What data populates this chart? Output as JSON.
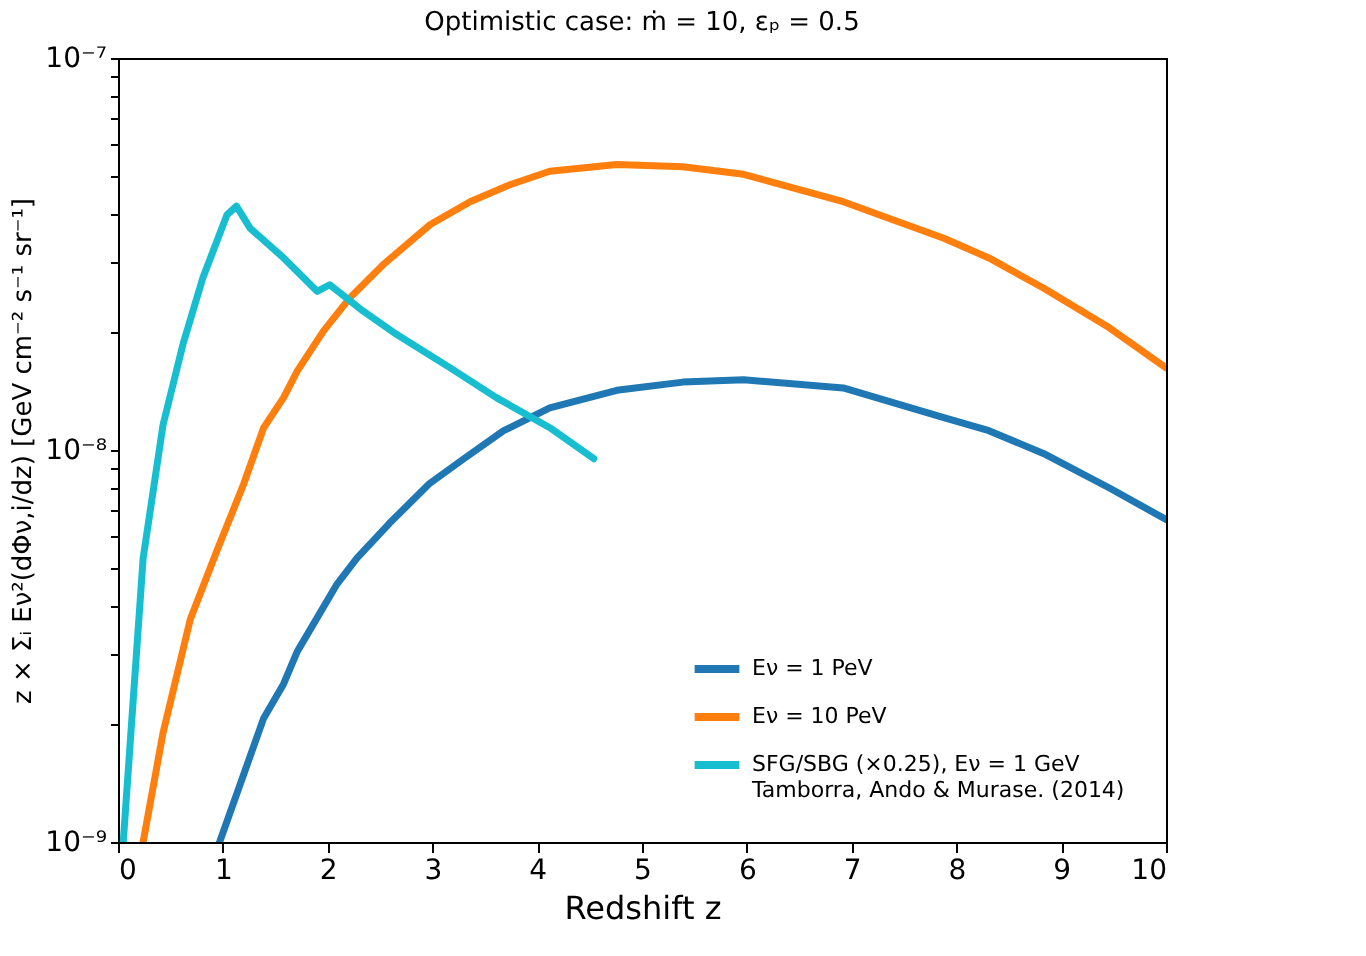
{
  "chart_data": {
    "type": "line",
    "title": "Optimistic case: ṁ = 10, εₚ = 0.5",
    "xlabel": "Redshift z",
    "ylabel": "z × Σᵢ Eν²(dΦν,i/dz) [GeV cm⁻² s⁻¹ sr⁻¹]",
    "log": "y",
    "grid": false,
    "legend": "bottom right",
    "line_style": "solid",
    "marker": "none",
    "xlim": [
      0,
      10
    ],
    "xticks": [
      0,
      1,
      2,
      3,
      4,
      5,
      6,
      7,
      8,
      9,
      10
    ],
    "ylim": [
      1e-09,
      1e-07
    ],
    "yticks": [
      {
        "value": 1e-09,
        "label": "10⁻⁹"
      },
      {
        "value": 2e-09,
        "label": null
      },
      {
        "value": 3e-09,
        "label": null
      },
      {
        "value": 4e-09,
        "label": null
      },
      {
        "value": 5e-09,
        "label": null
      },
      {
        "value": 6e-09,
        "label": null
      },
      {
        "value": 7e-09,
        "label": null
      },
      {
        "value": 8e-09,
        "label": null
      },
      {
        "value": 9e-09,
        "label": null
      },
      {
        "value": 1e-08,
        "label": "10⁻⁸"
      },
      {
        "value": 2e-08,
        "label": null
      },
      {
        "value": 3e-08,
        "label": null
      },
      {
        "value": 4e-08,
        "label": null
      },
      {
        "value": 5e-08,
        "label": null
      },
      {
        "value": 6e-08,
        "label": null
      },
      {
        "value": 7e-08,
        "label": null
      },
      {
        "value": 8e-08,
        "label": null
      },
      {
        "value": 9e-08,
        "label": null
      },
      {
        "value": 1e-07,
        "label": "10⁻⁷"
      }
    ],
    "series": [
      {
        "name": "Eν = 1 PeV",
        "color": "#1f77b4",
        "x": [
          0.97,
          1.39,
          1.58,
          1.71,
          2.09,
          2.28,
          2.59,
          2.97,
          3.3,
          3.68,
          4.12,
          4.76,
          5.39,
          5.97,
          6.92,
          7.88,
          8.31,
          8.83,
          9.46,
          10
        ],
        "values": [
          1e-09,
          2.07e-09,
          2.53e-09,
          3.06e-09,
          4.55e-09,
          5.3e-09,
          6.5e-09,
          8.2e-09,
          9.5e-09,
          1.12e-08,
          1.28e-08,
          1.42e-08,
          1.49e-08,
          1.51e-08,
          1.44e-08,
          1.21e-08,
          1.12e-08,
          9.8e-09,
          8e-09,
          6.65e-09
        ]
      },
      {
        "name": "Eν = 10 PeV",
        "color": "#ff7f0e",
        "x": [
          0.24,
          0.43,
          0.69,
          0.94,
          1.2,
          1.39,
          1.58,
          1.71,
          1.96,
          2.21,
          2.53,
          2.98,
          3.36,
          3.74,
          4.12,
          4.76,
          5.39,
          5.97,
          6.92,
          7.88,
          8.31,
          8.83,
          9.46,
          10
        ],
        "values": [
          1e-09,
          1.9e-09,
          3.7e-09,
          5.5e-09,
          8.2e-09,
          1.14e-08,
          1.36e-08,
          1.59e-08,
          2.01e-08,
          2.44e-08,
          2.97e-08,
          3.76e-08,
          4.3e-08,
          4.75e-08,
          5.14e-08,
          5.35e-08,
          5.28e-08,
          5.05e-08,
          4.3e-08,
          3.47e-08,
          3.09e-08,
          2.59e-08,
          2.05e-08,
          1.62e-08
        ]
      },
      {
        "name": "SFG/SBG (×0.25), Eν = 1 GeV\n Tamborra, Ando & Murase. (2014)",
        "color": "#17becf",
        "x": [
          0.05,
          0.24,
          0.43,
          0.62,
          0.81,
          1.04,
          1.13,
          1.26,
          1.58,
          1.9,
          2.02,
          2.34,
          2.66,
          3.17,
          3.61,
          4.12,
          4.54
        ],
        "values": [
          1e-09,
          5.3e-09,
          1.16e-08,
          1.86e-08,
          2.75e-08,
          3.98e-08,
          4.19e-08,
          3.68e-08,
          3.09e-08,
          2.54e-08,
          2.64e-08,
          2.26e-08,
          1.97e-08,
          1.62e-08,
          1.36e-08,
          1.14e-08,
          9.5e-09
        ]
      }
    ]
  }
}
